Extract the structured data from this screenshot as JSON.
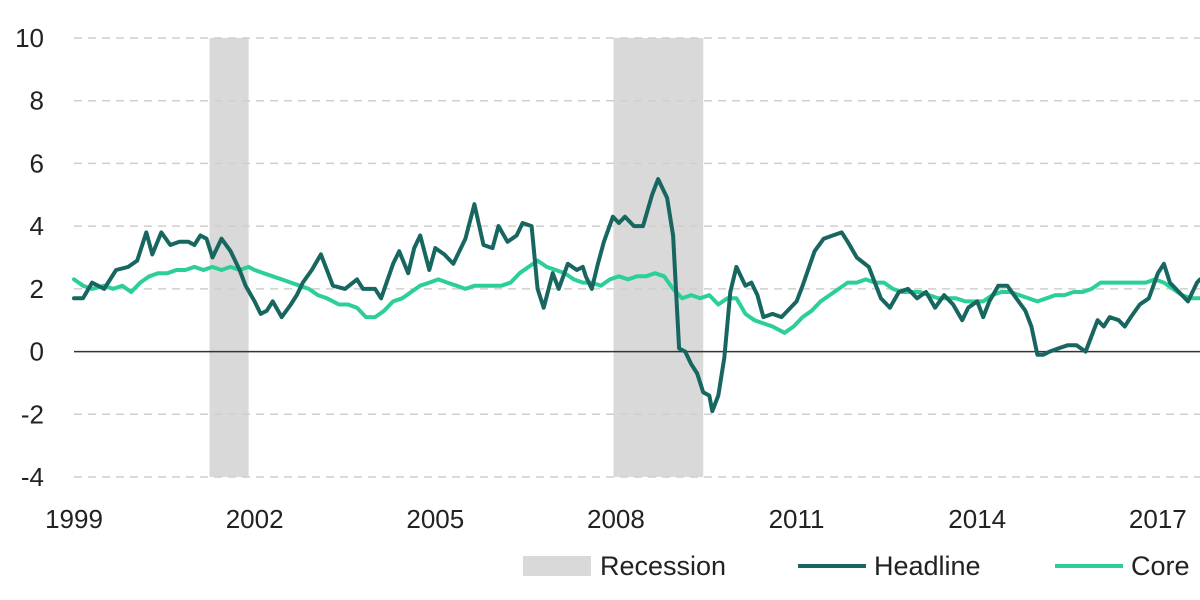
{
  "chart_data": {
    "type": "line",
    "title": "",
    "xlabel": "",
    "ylabel": "",
    "xlim": [
      1999,
      2017.7
    ],
    "ylim": [
      -4,
      10
    ],
    "x_ticks": [
      {
        "value": 1999,
        "label": "1999"
      },
      {
        "value": 2002,
        "label": "2002"
      },
      {
        "value": 2005,
        "label": "2005"
      },
      {
        "value": 2008,
        "label": "2008"
      },
      {
        "value": 2011,
        "label": "2011"
      },
      {
        "value": 2014,
        "label": "2014"
      },
      {
        "value": 2017,
        "label": "2017"
      }
    ],
    "y_ticks": [
      {
        "value": 10,
        "label": "10"
      },
      {
        "value": 8,
        "label": "8"
      },
      {
        "value": 6,
        "label": "6"
      },
      {
        "value": 4,
        "label": "4"
      },
      {
        "value": 2,
        "label": "2"
      },
      {
        "value": 0,
        "label": "0"
      },
      {
        "value": -2,
        "label": "-2"
      },
      {
        "value": -4,
        "label": "-4"
      }
    ],
    "grid": "horizontal-dashed",
    "legend_position": "bottom-right",
    "recessions": [
      {
        "start": 2001.25,
        "end": 2001.9
      },
      {
        "start": 2007.96,
        "end": 2009.45
      }
    ],
    "colors": {
      "recession": "#d9d9d9",
      "headline": "#17665f",
      "core": "#2ccf97",
      "grid": "#cfcfcf",
      "zero_line": "#333333"
    },
    "legend": [
      {
        "key": "recession",
        "label": "Recession",
        "swatch": "box"
      },
      {
        "key": "headline",
        "label": "Headline",
        "swatch": "line"
      },
      {
        "key": "core",
        "label": "Core",
        "swatch": "line"
      }
    ],
    "series": [
      {
        "name": "Headline",
        "key": "headline",
        "points": [
          [
            1999.0,
            1.7
          ],
          [
            1999.15,
            1.7
          ],
          [
            1999.3,
            2.2
          ],
          [
            1999.5,
            2.0
          ],
          [
            1999.7,
            2.6
          ],
          [
            1999.9,
            2.7
          ],
          [
            2000.05,
            2.9
          ],
          [
            2000.2,
            3.8
          ],
          [
            2000.3,
            3.1
          ],
          [
            2000.45,
            3.8
          ],
          [
            2000.6,
            3.4
          ],
          [
            2000.75,
            3.5
          ],
          [
            2000.9,
            3.5
          ],
          [
            2001.0,
            3.4
          ],
          [
            2001.1,
            3.7
          ],
          [
            2001.2,
            3.6
          ],
          [
            2001.3,
            3.0
          ],
          [
            2001.45,
            3.6
          ],
          [
            2001.6,
            3.2
          ],
          [
            2001.75,
            2.6
          ],
          [
            2001.85,
            2.1
          ],
          [
            2002.0,
            1.6
          ],
          [
            2002.1,
            1.2
          ],
          [
            2002.2,
            1.3
          ],
          [
            2002.3,
            1.6
          ],
          [
            2002.45,
            1.1
          ],
          [
            2002.6,
            1.5
          ],
          [
            2002.7,
            1.8
          ],
          [
            2002.8,
            2.2
          ],
          [
            2002.95,
            2.6
          ],
          [
            2003.1,
            3.1
          ],
          [
            2003.3,
            2.1
          ],
          [
            2003.5,
            2.0
          ],
          [
            2003.7,
            2.3
          ],
          [
            2003.8,
            2.0
          ],
          [
            2004.0,
            2.0
          ],
          [
            2004.1,
            1.7
          ],
          [
            2004.3,
            2.8
          ],
          [
            2004.4,
            3.2
          ],
          [
            2004.55,
            2.5
          ],
          [
            2004.65,
            3.3
          ],
          [
            2004.75,
            3.7
          ],
          [
            2004.9,
            2.6
          ],
          [
            2005.0,
            3.3
          ],
          [
            2005.15,
            3.1
          ],
          [
            2005.3,
            2.8
          ],
          [
            2005.5,
            3.6
          ],
          [
            2005.65,
            4.7
          ],
          [
            2005.8,
            3.4
          ],
          [
            2005.95,
            3.3
          ],
          [
            2006.05,
            4.0
          ],
          [
            2006.2,
            3.5
          ],
          [
            2006.35,
            3.7
          ],
          [
            2006.45,
            4.1
          ],
          [
            2006.6,
            4.0
          ],
          [
            2006.7,
            2.0
          ],
          [
            2006.8,
            1.4
          ],
          [
            2006.95,
            2.5
          ],
          [
            2007.05,
            2.0
          ],
          [
            2007.2,
            2.8
          ],
          [
            2007.35,
            2.6
          ],
          [
            2007.45,
            2.7
          ],
          [
            2007.5,
            2.4
          ],
          [
            2007.6,
            2.0
          ],
          [
            2007.7,
            2.8
          ],
          [
            2007.8,
            3.5
          ],
          [
            2007.95,
            4.3
          ],
          [
            2008.05,
            4.1
          ],
          [
            2008.15,
            4.3
          ],
          [
            2008.3,
            4.0
          ],
          [
            2008.45,
            4.0
          ],
          [
            2008.6,
            5.0
          ],
          [
            2008.7,
            5.5
          ],
          [
            2008.85,
            4.9
          ],
          [
            2008.95,
            3.7
          ],
          [
            2009.05,
            0.1
          ],
          [
            2009.15,
            0.0
          ],
          [
            2009.25,
            -0.4
          ],
          [
            2009.35,
            -0.7
          ],
          [
            2009.45,
            -1.3
          ],
          [
            2009.55,
            -1.4
          ],
          [
            2009.6,
            -1.9
          ],
          [
            2009.7,
            -1.4
          ],
          [
            2009.8,
            -0.2
          ],
          [
            2009.9,
            1.9
          ],
          [
            2010.0,
            2.7
          ],
          [
            2010.15,
            2.1
          ],
          [
            2010.25,
            2.2
          ],
          [
            2010.35,
            1.8
          ],
          [
            2010.45,
            1.1
          ],
          [
            2010.6,
            1.2
          ],
          [
            2010.75,
            1.1
          ],
          [
            2010.9,
            1.4
          ],
          [
            2011.0,
            1.6
          ],
          [
            2011.1,
            2.1
          ],
          [
            2011.3,
            3.2
          ],
          [
            2011.45,
            3.6
          ],
          [
            2011.6,
            3.7
          ],
          [
            2011.75,
            3.8
          ],
          [
            2011.85,
            3.5
          ],
          [
            2012.0,
            3.0
          ],
          [
            2012.2,
            2.7
          ],
          [
            2012.4,
            1.7
          ],
          [
            2012.55,
            1.4
          ],
          [
            2012.7,
            1.9
          ],
          [
            2012.85,
            2.0
          ],
          [
            2013.0,
            1.7
          ],
          [
            2013.15,
            1.9
          ],
          [
            2013.3,
            1.4
          ],
          [
            2013.45,
            1.8
          ],
          [
            2013.6,
            1.5
          ],
          [
            2013.75,
            1.0
          ],
          [
            2013.85,
            1.4
          ],
          [
            2014.0,
            1.6
          ],
          [
            2014.1,
            1.1
          ],
          [
            2014.2,
            1.6
          ],
          [
            2014.35,
            2.1
          ],
          [
            2014.5,
            2.1
          ],
          [
            2014.65,
            1.7
          ],
          [
            2014.8,
            1.3
          ],
          [
            2014.9,
            0.8
          ],
          [
            2015.0,
            -0.1
          ],
          [
            2015.1,
            -0.1
          ],
          [
            2015.2,
            0.0
          ],
          [
            2015.35,
            0.1
          ],
          [
            2015.5,
            0.2
          ],
          [
            2015.65,
            0.2
          ],
          [
            2015.8,
            0.0
          ],
          [
            2015.9,
            0.5
          ],
          [
            2016.0,
            1.0
          ],
          [
            2016.1,
            0.8
          ],
          [
            2016.2,
            1.1
          ],
          [
            2016.35,
            1.0
          ],
          [
            2016.45,
            0.8
          ],
          [
            2016.55,
            1.1
          ],
          [
            2016.7,
            1.5
          ],
          [
            2016.85,
            1.7
          ],
          [
            2017.0,
            2.5
          ],
          [
            2017.1,
            2.8
          ],
          [
            2017.2,
            2.2
          ],
          [
            2017.35,
            1.9
          ],
          [
            2017.5,
            1.6
          ],
          [
            2017.65,
            2.2
          ],
          [
            2017.7,
            2.3
          ]
        ]
      },
      {
        "name": "Core",
        "key": "core",
        "points": [
          [
            1999.0,
            2.3
          ],
          [
            1999.15,
            2.1
          ],
          [
            1999.3,
            2.0
          ],
          [
            1999.5,
            2.1
          ],
          [
            1999.65,
            2.0
          ],
          [
            1999.8,
            2.1
          ],
          [
            1999.95,
            1.9
          ],
          [
            2000.1,
            2.2
          ],
          [
            2000.25,
            2.4
          ],
          [
            2000.4,
            2.5
          ],
          [
            2000.55,
            2.5
          ],
          [
            2000.7,
            2.6
          ],
          [
            2000.85,
            2.6
          ],
          [
            2001.0,
            2.7
          ],
          [
            2001.15,
            2.6
          ],
          [
            2001.3,
            2.7
          ],
          [
            2001.45,
            2.6
          ],
          [
            2001.6,
            2.7
          ],
          [
            2001.75,
            2.6
          ],
          [
            2001.9,
            2.7
          ],
          [
            2002.0,
            2.6
          ],
          [
            2002.15,
            2.5
          ],
          [
            2002.3,
            2.4
          ],
          [
            2002.45,
            2.3
          ],
          [
            2002.6,
            2.2
          ],
          [
            2002.75,
            2.1
          ],
          [
            2002.9,
            2.0
          ],
          [
            2003.05,
            1.8
          ],
          [
            2003.2,
            1.7
          ],
          [
            2003.4,
            1.5
          ],
          [
            2003.55,
            1.5
          ],
          [
            2003.7,
            1.4
          ],
          [
            2003.85,
            1.1
          ],
          [
            2004.0,
            1.1
          ],
          [
            2004.15,
            1.3
          ],
          [
            2004.3,
            1.6
          ],
          [
            2004.45,
            1.7
          ],
          [
            2004.6,
            1.9
          ],
          [
            2004.75,
            2.1
          ],
          [
            2004.9,
            2.2
          ],
          [
            2005.05,
            2.3
          ],
          [
            2005.2,
            2.2
          ],
          [
            2005.35,
            2.1
          ],
          [
            2005.5,
            2.0
          ],
          [
            2005.65,
            2.1
          ],
          [
            2005.8,
            2.1
          ],
          [
            2005.95,
            2.1
          ],
          [
            2006.1,
            2.1
          ],
          [
            2006.25,
            2.2
          ],
          [
            2006.4,
            2.5
          ],
          [
            2006.55,
            2.7
          ],
          [
            2006.7,
            2.9
          ],
          [
            2006.85,
            2.7
          ],
          [
            2007.0,
            2.6
          ],
          [
            2007.15,
            2.5
          ],
          [
            2007.3,
            2.3
          ],
          [
            2007.45,
            2.2
          ],
          [
            2007.6,
            2.2
          ],
          [
            2007.75,
            2.1
          ],
          [
            2007.9,
            2.3
          ],
          [
            2008.05,
            2.4
          ],
          [
            2008.2,
            2.3
          ],
          [
            2008.35,
            2.4
          ],
          [
            2008.5,
            2.4
          ],
          [
            2008.65,
            2.5
          ],
          [
            2008.8,
            2.4
          ],
          [
            2008.95,
            2.0
          ],
          [
            2009.1,
            1.7
          ],
          [
            2009.25,
            1.8
          ],
          [
            2009.4,
            1.7
          ],
          [
            2009.55,
            1.8
          ],
          [
            2009.7,
            1.5
          ],
          [
            2009.85,
            1.7
          ],
          [
            2010.0,
            1.7
          ],
          [
            2010.15,
            1.2
          ],
          [
            2010.3,
            1.0
          ],
          [
            2010.45,
            0.9
          ],
          [
            2010.6,
            0.8
          ],
          [
            2010.8,
            0.6
          ],
          [
            2010.95,
            0.8
          ],
          [
            2011.1,
            1.1
          ],
          [
            2011.25,
            1.3
          ],
          [
            2011.4,
            1.6
          ],
          [
            2011.55,
            1.8
          ],
          [
            2011.7,
            2.0
          ],
          [
            2011.85,
            2.2
          ],
          [
            2012.0,
            2.2
          ],
          [
            2012.15,
            2.3
          ],
          [
            2012.3,
            2.2
          ],
          [
            2012.45,
            2.2
          ],
          [
            2012.6,
            2.0
          ],
          [
            2012.75,
            1.9
          ],
          [
            2012.9,
            1.9
          ],
          [
            2013.05,
            1.9
          ],
          [
            2013.2,
            1.8
          ],
          [
            2013.35,
            1.7
          ],
          [
            2013.5,
            1.7
          ],
          [
            2013.65,
            1.7
          ],
          [
            2013.8,
            1.6
          ],
          [
            2013.95,
            1.6
          ],
          [
            2014.1,
            1.6
          ],
          [
            2014.25,
            1.8
          ],
          [
            2014.4,
            1.9
          ],
          [
            2014.55,
            1.9
          ],
          [
            2014.7,
            1.8
          ],
          [
            2014.85,
            1.7
          ],
          [
            2015.0,
            1.6
          ],
          [
            2015.15,
            1.7
          ],
          [
            2015.3,
            1.8
          ],
          [
            2015.45,
            1.8
          ],
          [
            2015.6,
            1.9
          ],
          [
            2015.75,
            1.9
          ],
          [
            2015.9,
            2.0
          ],
          [
            2016.05,
            2.2
          ],
          [
            2016.2,
            2.2
          ],
          [
            2016.35,
            2.2
          ],
          [
            2016.5,
            2.2
          ],
          [
            2016.65,
            2.2
          ],
          [
            2016.8,
            2.2
          ],
          [
            2016.95,
            2.3
          ],
          [
            2017.1,
            2.2
          ],
          [
            2017.25,
            2.0
          ],
          [
            2017.4,
            1.8
          ],
          [
            2017.55,
            1.7
          ],
          [
            2017.7,
            1.7
          ]
        ]
      }
    ]
  }
}
